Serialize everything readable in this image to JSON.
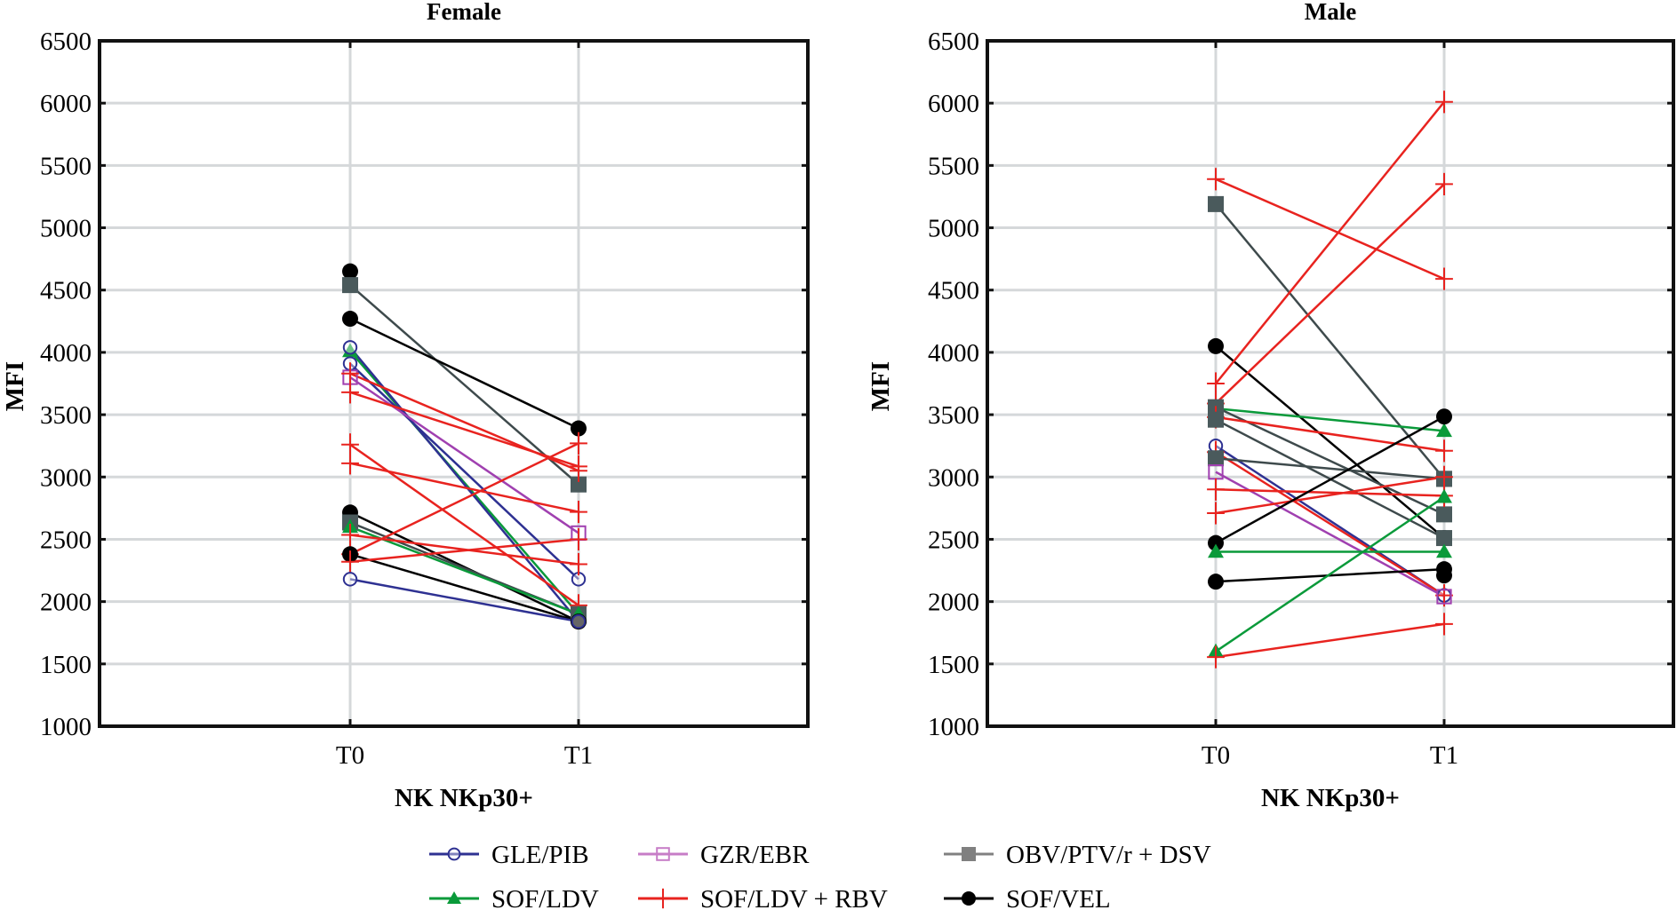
{
  "chart_data": {
    "type": "line",
    "ylabel": "MFI",
    "ylim": [
      1000,
      6500
    ],
    "yticks": [
      "1000",
      "1500",
      "2000",
      "2500",
      "3000",
      "3500",
      "4000",
      "4500",
      "5000",
      "5500",
      "6000",
      "6500"
    ],
    "grid": true,
    "legend_position": "bottom-center",
    "legend": [
      {
        "name": "GLE/PIB",
        "marker": "circle-open",
        "color": "#2e3192"
      },
      {
        "name": "GZR/EBR",
        "marker": "square-open",
        "color": "#c77dc7"
      },
      {
        "name": "OBV/PTV/r + DSV",
        "marker": "square-filled",
        "color": "#808080"
      },
      {
        "name": "SOF/LDV",
        "marker": "triangle-filled",
        "color": "#0a9a3a"
      },
      {
        "name": "SOF/LDV + RBV",
        "marker": "cross",
        "color": "#e8231f"
      },
      {
        "name": "SOF/VEL",
        "marker": "circle-filled",
        "color": "#000000"
      }
    ],
    "series_styles": {
      "GLE/PIB": {
        "line": "#2e3192",
        "marker": "circle-open"
      },
      "GZR/EBR": {
        "line": "#a040b0",
        "marker": "square-open",
        "marker_color": "#a040b0"
      },
      "OBV/PTV/r + DSV": {
        "line": "#3e4a4c",
        "marker": "square-filled",
        "marker_color": "#4a5a5c"
      },
      "SOF/LDV": {
        "line": "#0a9a3a",
        "marker": "triangle-filled"
      },
      "SOF/LDV + RBV": {
        "line": "#e8231f",
        "marker": "cross"
      },
      "SOF/VEL": {
        "line": "#000000",
        "marker": "circle-filled"
      }
    },
    "panels": [
      {
        "title": "Female",
        "xlabel": "NK NKp30+",
        "categories": [
          "T0",
          "T1"
        ],
        "series": [
          {
            "name": "SOF/VEL",
            "values": [
              4650,
              null
            ]
          },
          {
            "name": "OBV/PTV/r + DSV",
            "values": [
              4540,
              2940
            ]
          },
          {
            "name": "SOF/VEL",
            "values": [
              4270,
              3390
            ]
          },
          {
            "name": "SOF/LDV",
            "values": [
              4010,
              1900
            ]
          },
          {
            "name": "GLE/PIB",
            "values": [
              4040,
              1840
            ]
          },
          {
            "name": "GLE/PIB",
            "values": [
              3910,
              2180
            ]
          },
          {
            "name": "GZR/EBR",
            "values": [
              3800,
              2550
            ]
          },
          {
            "name": "SOF/LDV + RBV",
            "values": [
              3830,
              3050
            ]
          },
          {
            "name": "SOF/LDV + RBV",
            "values": [
              3680,
              3085
            ]
          },
          {
            "name": "SOF/LDV + RBV",
            "values": [
              3260,
              1970
            ]
          },
          {
            "name": "SOF/LDV + RBV",
            "values": [
              3110,
              2720
            ]
          },
          {
            "name": "SOF/VEL",
            "values": [
              2715,
              1840
            ]
          },
          {
            "name": "OBV/PTV/r + DSV",
            "values": [
              2635,
              1900
            ]
          },
          {
            "name": "SOF/LDV",
            "values": [
              2600,
              1900
            ]
          },
          {
            "name": "SOF/LDV + RBV",
            "values": [
              2535,
              2300
            ]
          },
          {
            "name": "SOF/LDV + RBV",
            "values": [
              2380,
              3270
            ]
          },
          {
            "name": "SOF/VEL",
            "values": [
              2380,
              1840
            ]
          },
          {
            "name": "SOF/LDV + RBV",
            "values": [
              2320,
              2500
            ]
          },
          {
            "name": "GLE/PIB",
            "values": [
              2180,
              1840
            ]
          }
        ]
      },
      {
        "title": "Male",
        "xlabel": "NK NKp30+",
        "categories": [
          "T0",
          "T1"
        ],
        "series": [
          {
            "name": "SOF/LDV + RBV",
            "values": [
              5390,
              4590
            ]
          },
          {
            "name": "OBV/PTV/r + DSV",
            "values": [
              5190,
              2985
            ]
          },
          {
            "name": "SOF/VEL",
            "values": [
              4050,
              2510
            ]
          },
          {
            "name": "SOF/LDV + RBV",
            "values": [
              3750,
              6010
            ]
          },
          {
            "name": "SOF/LDV + RBV",
            "values": [
              3590,
              5350
            ]
          },
          {
            "name": "SOF/LDV",
            "values": [
              3550,
              3370
            ]
          },
          {
            "name": "OBV/PTV/r + DSV",
            "values": [
              3560,
              2700
            ]
          },
          {
            "name": "SOF/LDV + RBV",
            "values": [
              3480,
              3210
            ]
          },
          {
            "name": "OBV/PTV/r + DSV",
            "values": [
              3460,
              2510
            ]
          },
          {
            "name": "GLE/PIB",
            "values": [
              3250,
              2050
            ]
          },
          {
            "name": "SOF/LDV + RBV",
            "values": [
              3200,
              2050
            ]
          },
          {
            "name": "OBV/PTV/r + DSV",
            "values": [
              3150,
              2985
            ]
          },
          {
            "name": "GZR/EBR",
            "values": [
              3040,
              2040
            ]
          },
          {
            "name": "SOF/LDV + RBV",
            "values": [
              2900,
              2850
            ]
          },
          {
            "name": "SOF/LDV + RBV",
            "values": [
              2710,
              3000
            ]
          },
          {
            "name": "SOF/VEL",
            "values": [
              2470,
              3485
            ]
          },
          {
            "name": "SOF/LDV",
            "values": [
              2400,
              2400
            ]
          },
          {
            "name": "SOF/VEL",
            "values": [
              2160,
              2260
            ]
          },
          {
            "name": "SOF/VEL",
            "values": [
              null,
              2210
            ]
          },
          {
            "name": "SOF/LDV",
            "values": [
              1600,
              2840
            ]
          },
          {
            "name": "SOF/LDV + RBV",
            "values": [
              1555,
              1820
            ]
          }
        ]
      }
    ]
  }
}
